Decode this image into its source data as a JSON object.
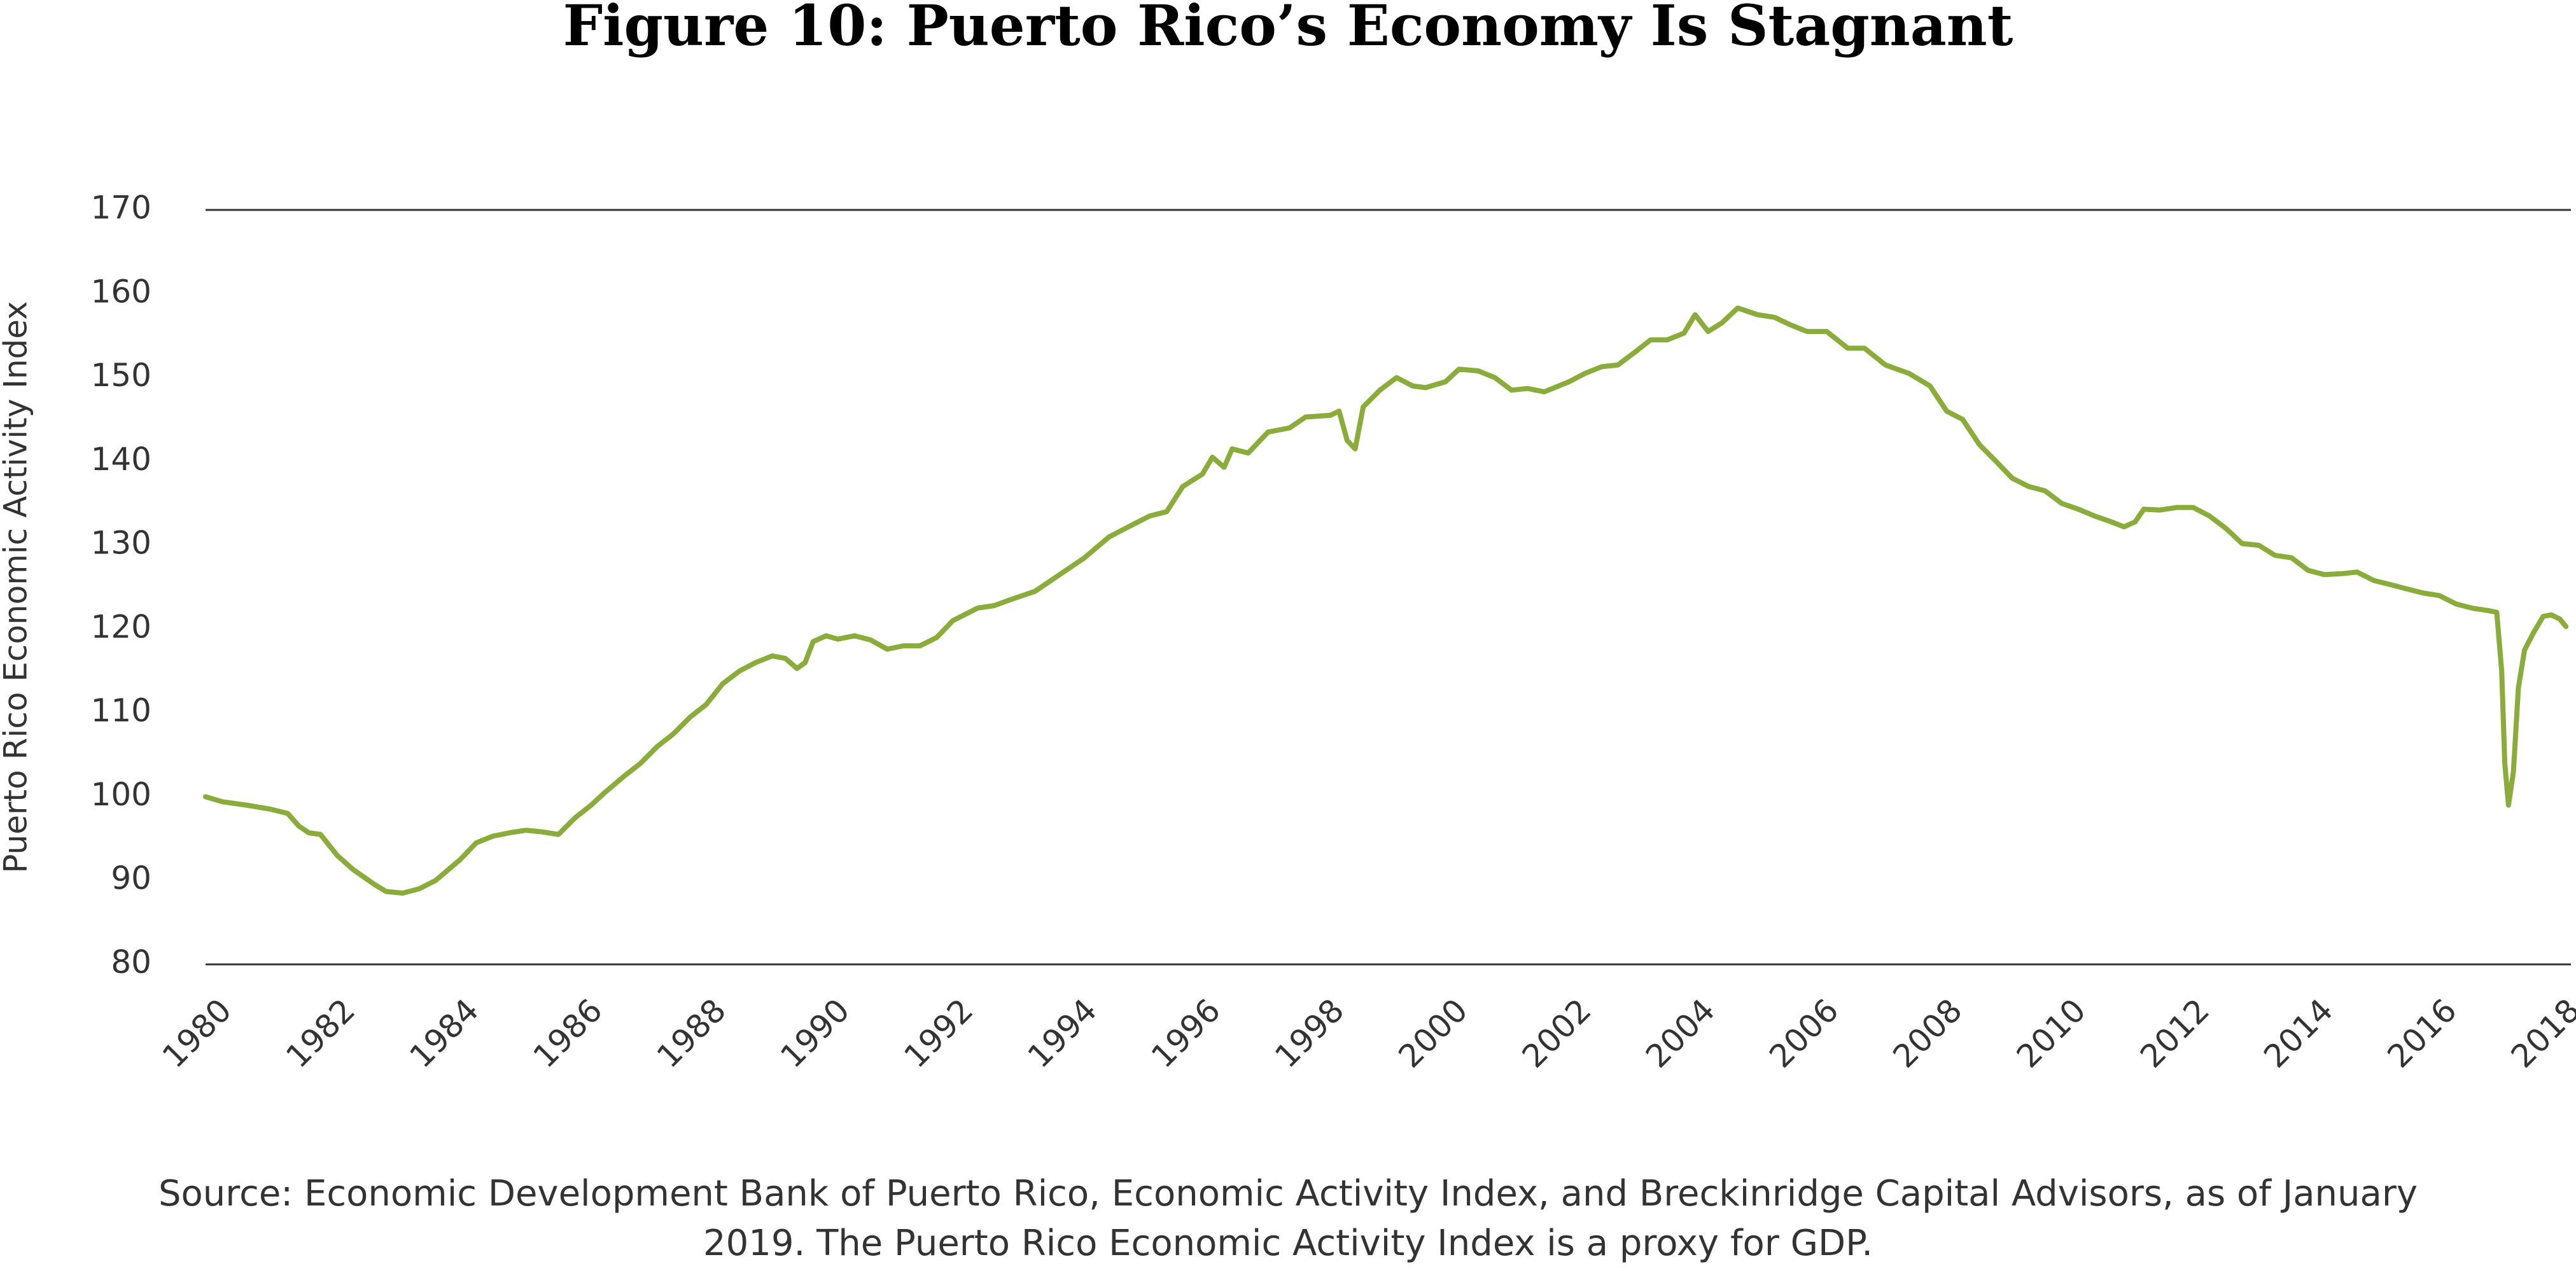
{
  "chart_data": {
    "type": "line",
    "title": "Figure 10: Puerto Rico’s Economy Is Stagnant",
    "y_label": "Puerto Rico Economic Activity Index",
    "source": [
      "Source: Economic Development Bank of Puerto Rico, Economic Activity Index, and Breckinridge Capital Advisors, as of January",
      "2019. The Puerto Rico Economic Activity Index is a proxy for GDP."
    ],
    "xlim": [
      1980,
      2018.27
    ],
    "xticks": [
      1980,
      1982,
      1984,
      1986,
      1988,
      1990,
      1992,
      1994,
      1996,
      1998,
      2000,
      2002,
      2004,
      2006,
      2008,
      2010,
      2012,
      2014,
      2016,
      2018
    ],
    "ylim": [
      80,
      170
    ],
    "yticks": [
      80,
      90,
      100,
      110,
      120,
      130,
      140,
      150,
      160,
      170
    ],
    "grid": false,
    "series": [
      {
        "color": "#8aac3a",
        "x": [
          1980.0,
          1980.27,
          1980.66,
          1981.06,
          1981.33,
          1981.51,
          1981.67,
          1981.86,
          1982.13,
          1982.39,
          1982.74,
          1982.92,
          1983.19,
          1983.45,
          1983.72,
          1984.12,
          1984.38,
          1984.65,
          1984.92,
          1985.18,
          1985.45,
          1985.71,
          1985.98,
          1986.24,
          1986.46,
          1986.78,
          1987.04,
          1987.31,
          1987.57,
          1987.84,
          1988.1,
          1988.37,
          1988.64,
          1988.9,
          1989.17,
          1989.38,
          1989.57,
          1989.7,
          1989.83,
          1990.04,
          1990.23,
          1990.5,
          1990.76,
          1991.03,
          1991.29,
          1991.56,
          1991.83,
          1992.09,
          1992.49,
          1992.76,
          1993.02,
          1993.42,
          1993.82,
          1994.22,
          1994.62,
          1994.88,
          1995.28,
          1995.55,
          1995.81,
          1996.13,
          1996.29,
          1996.48,
          1996.61,
          1996.87,
          1997.19,
          1997.54,
          1997.8,
          1998.2,
          1998.34,
          1998.47,
          1998.6,
          1998.73,
          1999.0,
          1999.27,
          1999.53,
          1999.74,
          2000.06,
          2000.28,
          2000.59,
          2000.86,
          2001.13,
          2001.39,
          2001.66,
          2002.06,
          2002.32,
          2002.59,
          2002.85,
          2003.12,
          2003.38,
          2003.65,
          2003.92,
          2004.1,
          2004.31,
          2004.53,
          2004.79,
          2005.11,
          2005.38,
          2005.64,
          2005.91,
          2006.23,
          2006.57,
          2006.84,
          2007.18,
          2007.56,
          2007.9,
          2008.17,
          2008.43,
          2008.7,
          2008.97,
          2009.23,
          2009.5,
          2009.76,
          2010.03,
          2010.3,
          2010.56,
          2010.83,
          2011.04,
          2011.22,
          2011.36,
          2011.62,
          2011.89,
          2012.16,
          2012.42,
          2012.69,
          2012.95,
          2013.22,
          2013.48,
          2013.75,
          2014.02,
          2014.28,
          2014.55,
          2014.81,
          2015.08,
          2015.35,
          2015.61,
          2015.88,
          2016.14,
          2016.41,
          2016.67,
          2016.94,
          2017.07,
          2017.15,
          2017.2,
          2017.26,
          2017.34,
          2017.42,
          2017.52,
          2017.66,
          2017.82,
          2017.95,
          2018.09,
          2018.19
        ],
        "values": [
          100,
          99.4,
          99,
          98.5,
          98,
          96.5,
          95.7,
          95.5,
          93,
          91.3,
          89.5,
          88.7,
          88.5,
          89,
          90,
          92.5,
          94.5,
          95.3,
          95.7,
          96,
          95.8,
          95.5,
          97.5,
          99,
          100.5,
          102.5,
          104,
          106,
          107.5,
          109.5,
          111,
          113.5,
          115,
          116,
          116.8,
          116.5,
          115.3,
          116,
          118.5,
          119.2,
          118.8,
          119.2,
          118.7,
          117.6,
          118,
          118,
          119,
          121,
          122.5,
          122.8,
          123.5,
          124.5,
          126.5,
          128.5,
          131,
          132,
          133.5,
          134,
          137,
          138.5,
          140.5,
          139.3,
          141.5,
          141,
          143.5,
          144,
          145.3,
          145.5,
          146,
          142.5,
          141.5,
          146.5,
          148.5,
          150,
          149,
          148.8,
          149.5,
          151,
          150.8,
          150,
          148.5,
          148.7,
          148.3,
          149.5,
          150.5,
          151.3,
          151.5,
          153,
          154.5,
          154.5,
          155.3,
          157.5,
          155.5,
          156.5,
          158.3,
          157.5,
          157.2,
          156.3,
          155.5,
          155.5,
          153.5,
          153.5,
          151.5,
          150.5,
          149,
          146,
          145,
          142,
          140,
          138,
          137,
          136.5,
          135,
          134.3,
          133.5,
          132.8,
          132.2,
          132.8,
          134.3,
          134.2,
          134.5,
          134.5,
          133.5,
          132,
          130.2,
          130,
          128.8,
          128.5,
          127,
          126.5,
          126.6,
          126.8,
          125.8,
          125.3,
          124.8,
          124.3,
          124,
          123,
          122.5,
          122.2,
          122,
          115,
          104,
          99,
          103,
          113,
          117.5,
          119.5,
          121.5,
          121.7,
          121.2,
          120.3
        ]
      }
    ]
  }
}
